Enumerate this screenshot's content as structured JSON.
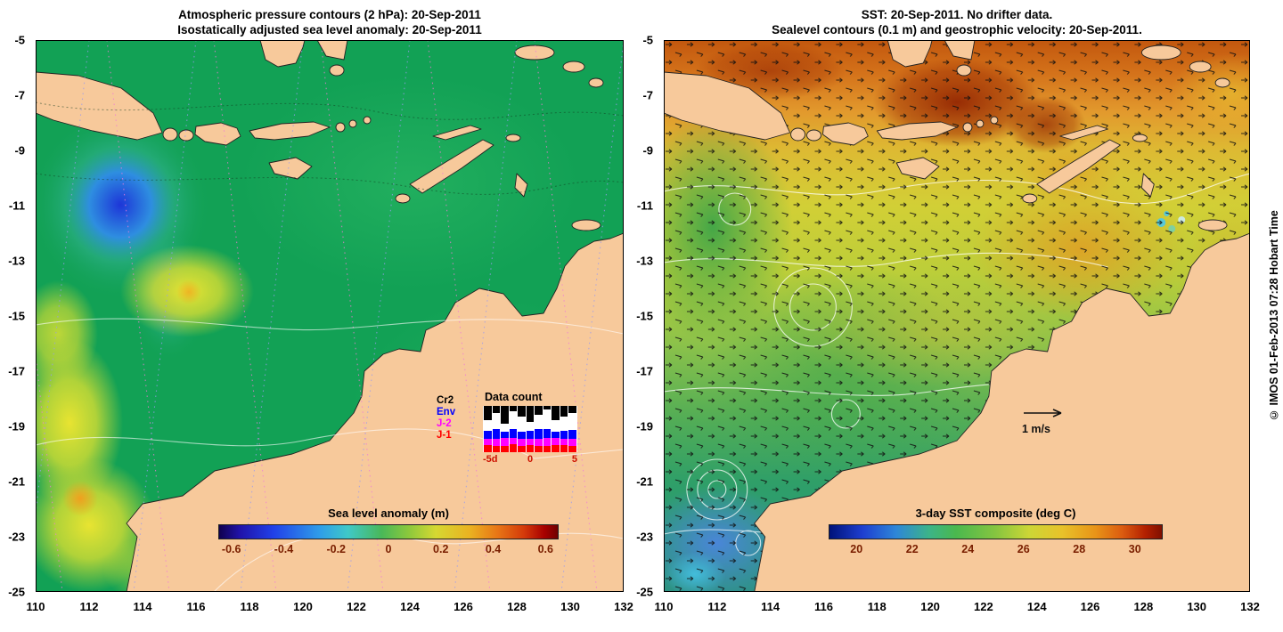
{
  "left_panel": {
    "title_line1": "Atmospheric pressure contours (2 hPa): 20-Sep-2011",
    "title_line2": "Isostatically adjusted sea level anomaly: 20-Sep-2011",
    "colorbar": {
      "label": "Sea level anomaly (m)",
      "ticks": [
        "-0.6",
        "-0.4",
        "-0.2",
        "0",
        "0.2",
        "0.4",
        "0.6"
      ],
      "min": -0.6,
      "max": 0.6
    },
    "inset": {
      "title": "Data count",
      "satellites": [
        {
          "label": "Cr2",
          "color": "#000000"
        },
        {
          "label": "Env",
          "color": "#0000ff"
        },
        {
          "label": "J-2",
          "color": "#ff00ff"
        },
        {
          "label": "J-1",
          "color": "#ff0000"
        }
      ],
      "x_ticks": [
        "-5d",
        "0",
        "5"
      ],
      "bars": {
        "black": [
          16,
          8,
          20,
          6,
          12,
          18,
          10,
          4,
          16,
          12,
          8
        ],
        "blue": [
          9,
          11,
          7,
          10,
          8,
          9,
          11,
          10,
          7,
          9,
          10
        ],
        "magenta": [
          7,
          8,
          9,
          7,
          8,
          7,
          8,
          9,
          8,
          7,
          8
        ],
        "red": [
          8,
          7,
          7,
          9,
          7,
          8,
          7,
          7,
          8,
          8,
          7
        ]
      }
    }
  },
  "right_panel": {
    "title_line1": "SST: 20-Sep-2011. No drifter data.",
    "title_line2": "Sealevel contours (0.1 m) and geostrophic velocity: 20-Sep-2011.",
    "colorbar": {
      "label": "3-day SST composite (deg C)",
      "ticks": [
        "20",
        "22",
        "24",
        "26",
        "28",
        "30"
      ],
      "min": 19,
      "max": 31
    },
    "velocity_scale_label": "1 m/s",
    "watermark": "© IMOS 01-Feb-2013 07:28 Hobart Time"
  },
  "axes": {
    "x_ticks": [
      "110",
      "112",
      "114",
      "116",
      "118",
      "120",
      "122",
      "124",
      "126",
      "128",
      "130",
      "132"
    ],
    "y_ticks": [
      "-5",
      "-7",
      "-9",
      "-11",
      "-13",
      "-15",
      "-17",
      "-19",
      "-21",
      "-23",
      "-25"
    ]
  },
  "chart_data": [
    {
      "type": "heatmap",
      "name": "sea_level_anomaly_map",
      "title": "Isostatically adjusted sea level anomaly: 20-Sep-2011",
      "x_range_deg_east": [
        110,
        132
      ],
      "y_range_deg_north": [
        -25,
        -5
      ],
      "x_tick_step": 2,
      "y_tick_step": 2,
      "colorbar": {
        "label": "Sea level anomaly (m)",
        "range": [
          -0.6,
          0.6
        ],
        "tick_values": [
          -0.6,
          -0.4,
          -0.2,
          0,
          0.2,
          0.4,
          0.6
        ],
        "palette": "blue-cyan-green-yellow-orange-red"
      },
      "overlays": [
        "atmospheric pressure contours (2 hPa)",
        "altimeter ground tracks (dotted)",
        "data count histogram, days -5d to 5, satellites Cr2 Env J-2 J-1"
      ]
    },
    {
      "type": "heatmap",
      "name": "sst_map",
      "title": "SST: 20-Sep-2011. No drifter data.",
      "x_range_deg_east": [
        110,
        132
      ],
      "y_range_deg_north": [
        -25,
        -5
      ],
      "x_tick_step": 2,
      "y_tick_step": 2,
      "colorbar": {
        "label": "3-day SST composite (deg C)",
        "range": [
          19,
          31
        ],
        "tick_values": [
          20,
          22,
          24,
          26,
          28,
          30
        ],
        "palette": "blue-green-yellow-orange-red"
      },
      "overlays": [
        "sealevel contours (0.1 m)",
        "geostrophic velocity arrows, scale 1 m/s"
      ]
    }
  ]
}
